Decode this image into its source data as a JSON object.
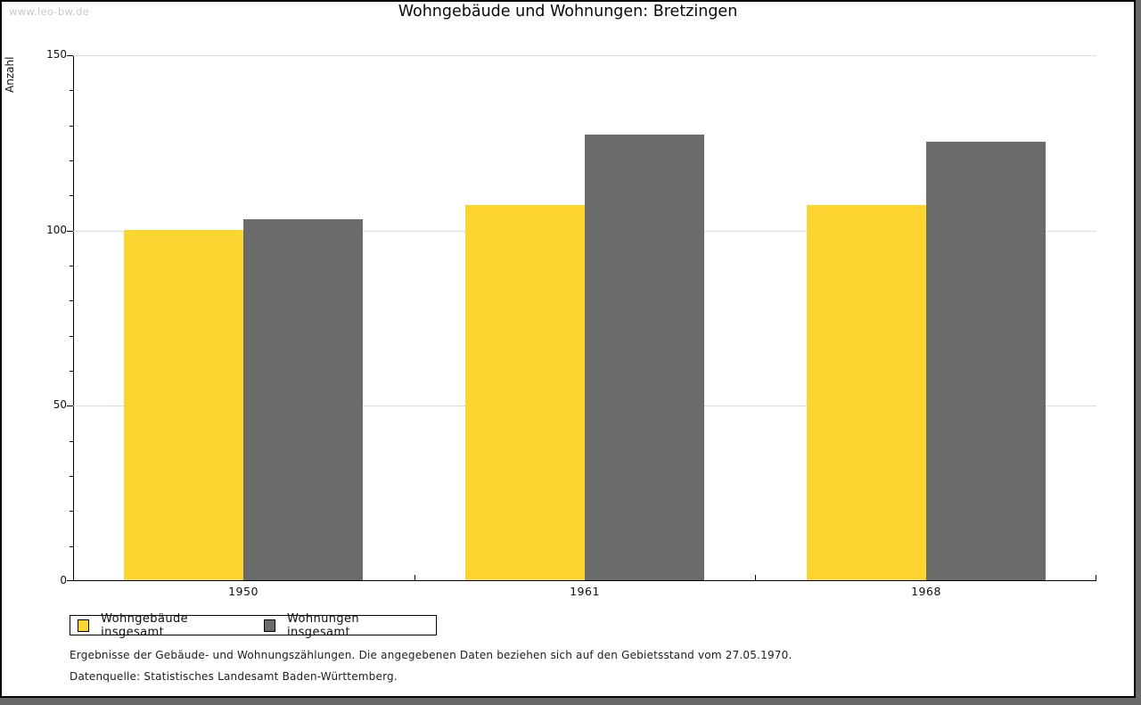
{
  "watermark": "www.leo-bw.de",
  "header": {
    "title": "Wohngebäude und Wohnungen: Bretzingen"
  },
  "chart_data": {
    "type": "bar",
    "title": "Wohngebäude und Wohnungen: Bretzingen",
    "xlabel": "",
    "ylabel": "Anzahl",
    "categories": [
      "1950",
      "1961",
      "1968"
    ],
    "series": [
      {
        "name": "Wohngebäude insgesamt",
        "color": "#FCD530",
        "values": [
          100,
          107,
          107
        ]
      },
      {
        "name": "Wohnungen insgesamt",
        "color": "#6B6B6B",
        "values": [
          103,
          127,
          125
        ]
      }
    ],
    "ylim": [
      0,
      150
    ],
    "yticks": [
      0,
      50,
      100,
      150
    ],
    "minor_tick_step": 10,
    "grid": true,
    "legend_position": "bottom-left"
  },
  "footnotes": {
    "line1": "Ergebnisse der Gebäude- und Wohnungszählungen. Die angegebenen Daten beziehen sich auf den Gebietsstand vom 27.05.1970.",
    "line2": "Datenquelle: Statistisches Landesamt Baden-Württemberg."
  }
}
